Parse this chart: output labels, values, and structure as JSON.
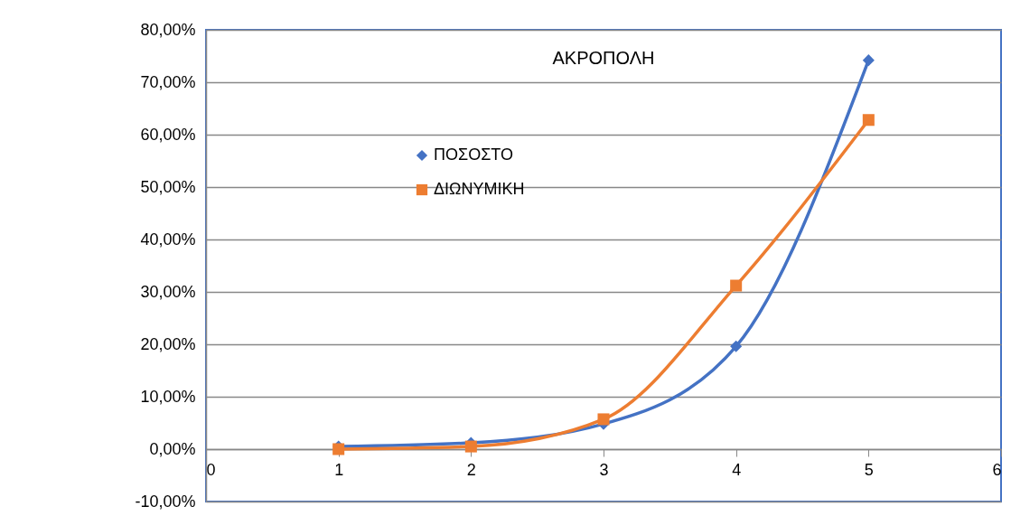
{
  "chart_data": {
    "type": "line",
    "title": "ΑΚΡΟΠΟΛΗ",
    "x": [
      1,
      2,
      3,
      4,
      5
    ],
    "series": [
      {
        "name": "ΠΟΣΟΣΤΟ",
        "color": "#4472c4",
        "marker": "diamond",
        "values": [
          0.5,
          1.2,
          4.8,
          19.6,
          74.2
        ]
      },
      {
        "name": "ΔΙΩΝΥΜΙΚΗ",
        "color": "#ed7d31",
        "marker": "square",
        "values": [
          0.0,
          0.5,
          5.7,
          31.2,
          62.8
        ]
      }
    ],
    "xlim": [
      0,
      6
    ],
    "xticks": [
      0,
      1,
      2,
      3,
      4,
      5,
      6
    ],
    "ylim": [
      -10,
      80
    ],
    "yticks": [
      {
        "value": -10,
        "label": "-10,00%"
      },
      {
        "value": 0,
        "label": "0,00%"
      },
      {
        "value": 10,
        "label": "10,00%"
      },
      {
        "value": 20,
        "label": "20,00%"
      },
      {
        "value": 30,
        "label": "30,00%"
      },
      {
        "value": 40,
        "label": "40,00%"
      },
      {
        "value": 50,
        "label": "50,00%"
      },
      {
        "value": 60,
        "label": "60,00%"
      },
      {
        "value": 70,
        "label": "70,00%"
      },
      {
        "value": 80,
        "label": "80,00%"
      }
    ],
    "grid": "y",
    "legend": "top left",
    "line_style": "solid"
  }
}
